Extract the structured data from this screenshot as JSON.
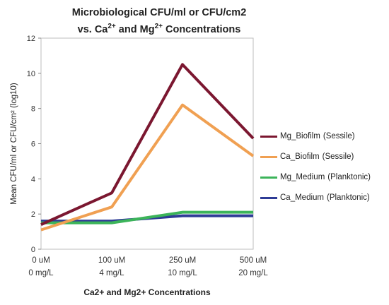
{
  "chart_data": {
    "type": "line",
    "title_line1": "Microbiological CFU/ml or CFU/cm2",
    "title_line2_parts": [
      "vs. Ca",
      "2+",
      " and ",
      "Mg",
      "2+",
      " Concentrations"
    ],
    "ylabel": "Mean CFU/ml or CFU/cm² (log10)",
    "xlabel": "Ca2+ and Mg2+ Concentrations",
    "ylim": [
      0,
      12
    ],
    "yticks": [
      "0",
      "2",
      "4",
      "6",
      "8",
      "10",
      "12"
    ],
    "categories": [
      {
        "line1": "0 uM",
        "line2": "0 mg/L"
      },
      {
        "line1": "100 uM",
        "line2": "4 mg/L"
      },
      {
        "line1": "250 uM",
        "line2": "10 mg/L"
      },
      {
        "line1": "500 uM",
        "line2": "20 mg/L"
      }
    ],
    "series": [
      {
        "name": "Mg_Biofilm",
        "kind": "(Sessile)",
        "color": "#7b1730",
        "values": [
          1.4,
          3.2,
          10.5,
          6.3
        ]
      },
      {
        "name": "Ca_Biofilm",
        "kind": "(Sessile)",
        "color": "#f0a052",
        "values": [
          1.1,
          2.4,
          8.2,
          5.3
        ]
      },
      {
        "name": "Mg_Medium",
        "kind": "(Planktonic)",
        "color": "#3cb45a",
        "values": [
          1.5,
          1.5,
          2.1,
          2.1
        ]
      },
      {
        "name": "Ca_Medium",
        "kind": "(Planktonic)",
        "color": "#2e3c96",
        "values": [
          1.6,
          1.6,
          1.9,
          1.9
        ]
      }
    ],
    "legend_position": "right",
    "grid": false
  }
}
